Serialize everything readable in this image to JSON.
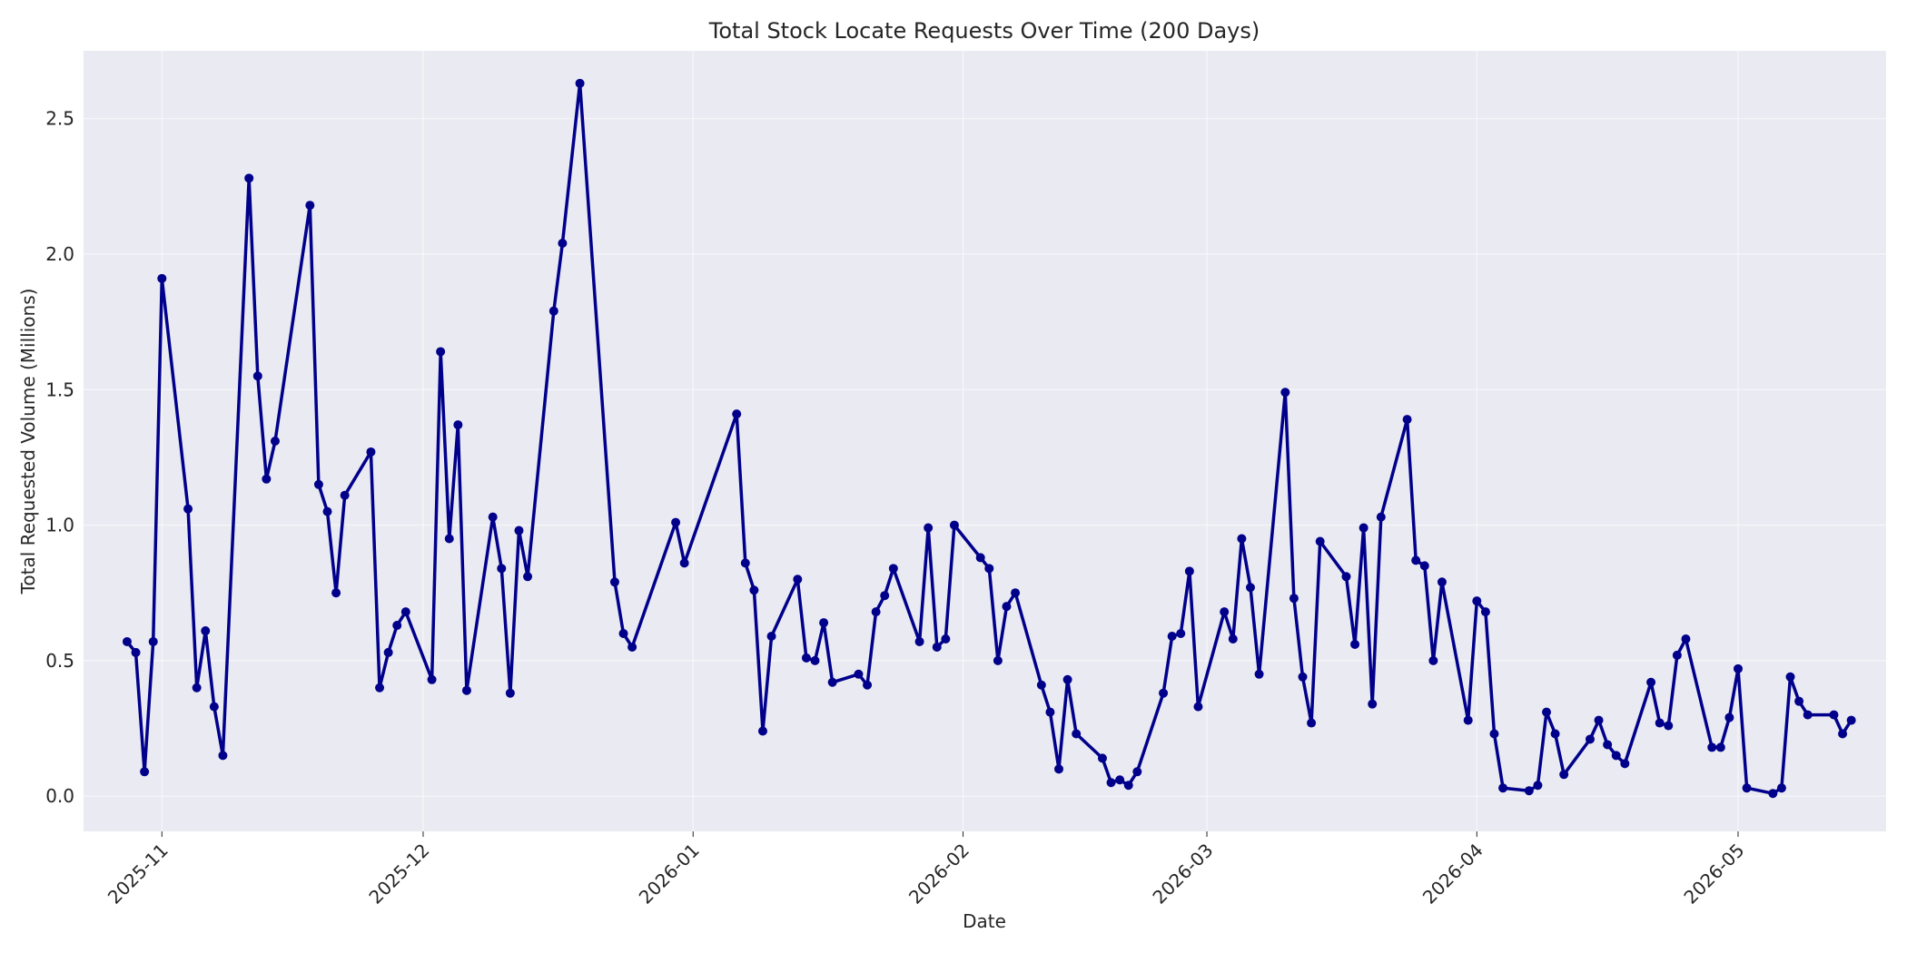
{
  "chart_data": {
    "type": "line",
    "title": "Total Stock Locate Requests Over Time (200 Days)",
    "xlabel": "Date",
    "ylabel": "Total Requested Volume (Millions)",
    "grid": true,
    "legend": "none",
    "colors": {
      "series": "#00008b",
      "plot_background": "#eaeaf2",
      "grid": "#ffffff"
    },
    "xlim": [
      "2025-10-23",
      "2026-05-18"
    ],
    "ylim": [
      -0.13,
      2.75
    ],
    "x_ticks": [
      "2025-11-01",
      "2025-12-01",
      "2026-01-01",
      "2026-02-01",
      "2026-03-01",
      "2026-04-01",
      "2026-05-01"
    ],
    "x_tick_labels": [
      "2025-11",
      "2025-12",
      "2026-01",
      "2026-02",
      "2026-03",
      "2026-04",
      "2026-05"
    ],
    "y_ticks": [
      0.0,
      0.5,
      1.0,
      1.5,
      2.0,
      2.5
    ],
    "y_tick_labels": [
      "0.0",
      "0.5",
      "1.0",
      "1.5",
      "2.0",
      "2.5"
    ],
    "series": [
      {
        "points": [
          [
            "2025-10-28",
            0.57
          ],
          [
            "2025-10-29",
            0.53
          ],
          [
            "2025-10-30",
            0.09
          ],
          [
            "2025-10-31",
            0.57
          ],
          [
            "2025-11-01",
            1.91
          ],
          [
            "2025-11-04",
            1.06
          ],
          [
            "2025-11-05",
            0.4
          ],
          [
            "2025-11-06",
            0.61
          ],
          [
            "2025-11-07",
            0.33
          ],
          [
            "2025-11-08",
            0.15
          ],
          [
            "2025-11-11",
            2.28
          ],
          [
            "2025-11-12",
            1.55
          ],
          [
            "2025-11-13",
            1.17
          ],
          [
            "2025-11-14",
            1.31
          ],
          [
            "2025-11-18",
            2.18
          ],
          [
            "2025-11-19",
            1.15
          ],
          [
            "2025-11-20",
            1.05
          ],
          [
            "2025-11-21",
            0.75
          ],
          [
            "2025-11-22",
            1.11
          ],
          [
            "2025-11-25",
            1.27
          ],
          [
            "2025-11-26",
            0.4
          ],
          [
            "2025-11-27",
            0.53
          ],
          [
            "2025-11-28",
            0.63
          ],
          [
            "2025-11-29",
            0.68
          ],
          [
            "2025-12-02",
            0.43
          ],
          [
            "2025-12-03",
            1.64
          ],
          [
            "2025-12-04",
            0.95
          ],
          [
            "2025-12-05",
            1.37
          ],
          [
            "2025-12-06",
            0.39
          ],
          [
            "2025-12-09",
            1.03
          ],
          [
            "2025-12-10",
            0.84
          ],
          [
            "2025-12-11",
            0.38
          ],
          [
            "2025-12-12",
            0.98
          ],
          [
            "2025-12-13",
            0.81
          ],
          [
            "2025-12-16",
            1.79
          ],
          [
            "2025-12-17",
            2.04
          ],
          [
            "2025-12-19",
            2.63
          ],
          [
            "2025-12-23",
            0.79
          ],
          [
            "2025-12-24",
            0.6
          ],
          [
            "2025-12-25",
            0.55
          ],
          [
            "2025-12-30",
            1.01
          ],
          [
            "2025-12-31",
            0.86
          ],
          [
            "2026-01-06",
            1.41
          ],
          [
            "2026-01-07",
            0.86
          ],
          [
            "2026-01-08",
            0.76
          ],
          [
            "2026-01-09",
            0.24
          ],
          [
            "2026-01-10",
            0.59
          ],
          [
            "2026-01-13",
            0.8
          ],
          [
            "2026-01-14",
            0.51
          ],
          [
            "2026-01-15",
            0.5
          ],
          [
            "2026-01-16",
            0.64
          ],
          [
            "2026-01-17",
            0.42
          ],
          [
            "2026-01-20",
            0.45
          ],
          [
            "2026-01-21",
            0.41
          ],
          [
            "2026-01-22",
            0.68
          ],
          [
            "2026-01-23",
            0.74
          ],
          [
            "2026-01-24",
            0.84
          ],
          [
            "2026-01-27",
            0.57
          ],
          [
            "2026-01-28",
            0.99
          ],
          [
            "2026-01-29",
            0.55
          ],
          [
            "2026-01-30",
            0.58
          ],
          [
            "2026-01-31",
            1.0
          ],
          [
            "2026-02-03",
            0.88
          ],
          [
            "2026-02-04",
            0.84
          ],
          [
            "2026-02-05",
            0.5
          ],
          [
            "2026-02-06",
            0.7
          ],
          [
            "2026-02-07",
            0.75
          ],
          [
            "2026-02-10",
            0.41
          ],
          [
            "2026-02-11",
            0.31
          ],
          [
            "2026-02-12",
            0.1
          ],
          [
            "2026-02-13",
            0.43
          ],
          [
            "2026-02-14",
            0.23
          ],
          [
            "2026-02-17",
            0.14
          ],
          [
            "2026-02-18",
            0.05
          ],
          [
            "2026-02-19",
            0.06
          ],
          [
            "2026-02-20",
            0.04
          ],
          [
            "2026-02-21",
            0.09
          ],
          [
            "2026-02-24",
            0.38
          ],
          [
            "2026-02-25",
            0.59
          ],
          [
            "2026-02-26",
            0.6
          ],
          [
            "2026-02-27",
            0.83
          ],
          [
            "2026-02-28",
            0.33
          ],
          [
            "2026-03-03",
            0.68
          ],
          [
            "2026-03-04",
            0.58
          ],
          [
            "2026-03-05",
            0.95
          ],
          [
            "2026-03-06",
            0.77
          ],
          [
            "2026-03-07",
            0.45
          ],
          [
            "2026-03-10",
            1.49
          ],
          [
            "2026-03-11",
            0.73
          ],
          [
            "2026-03-12",
            0.44
          ],
          [
            "2026-03-13",
            0.27
          ],
          [
            "2026-03-14",
            0.94
          ],
          [
            "2026-03-17",
            0.81
          ],
          [
            "2026-03-18",
            0.56
          ],
          [
            "2026-03-19",
            0.99
          ],
          [
            "2026-03-20",
            0.34
          ],
          [
            "2026-03-21",
            1.03
          ],
          [
            "2026-03-24",
            1.39
          ],
          [
            "2026-03-25",
            0.87
          ],
          [
            "2026-03-26",
            0.85
          ],
          [
            "2026-03-27",
            0.5
          ],
          [
            "2026-03-28",
            0.79
          ],
          [
            "2026-03-31",
            0.28
          ],
          [
            "2026-04-01",
            0.72
          ],
          [
            "2026-04-02",
            0.68
          ],
          [
            "2026-04-03",
            0.23
          ],
          [
            "2026-04-04",
            0.03
          ],
          [
            "2026-04-07",
            0.02
          ],
          [
            "2026-04-08",
            0.04
          ],
          [
            "2026-04-09",
            0.31
          ],
          [
            "2026-04-10",
            0.23
          ],
          [
            "2026-04-11",
            0.08
          ],
          [
            "2026-04-14",
            0.21
          ],
          [
            "2026-04-15",
            0.28
          ],
          [
            "2026-04-16",
            0.19
          ],
          [
            "2026-04-17",
            0.15
          ],
          [
            "2026-04-18",
            0.12
          ],
          [
            "2026-04-21",
            0.42
          ],
          [
            "2026-04-22",
            0.27
          ],
          [
            "2026-04-23",
            0.26
          ],
          [
            "2026-04-24",
            0.52
          ],
          [
            "2026-04-25",
            0.58
          ],
          [
            "2026-04-28",
            0.18
          ],
          [
            "2026-04-29",
            0.18
          ],
          [
            "2026-04-30",
            0.29
          ],
          [
            "2026-05-01",
            0.47
          ],
          [
            "2026-05-02",
            0.03
          ],
          [
            "2026-05-05",
            0.01
          ],
          [
            "2026-05-06",
            0.03
          ],
          [
            "2026-05-07",
            0.44
          ],
          [
            "2026-05-08",
            0.35
          ],
          [
            "2026-05-09",
            0.3
          ],
          [
            "2026-05-12",
            0.3
          ],
          [
            "2026-05-13",
            0.23
          ],
          [
            "2026-05-14",
            0.28
          ]
        ]
      }
    ]
  }
}
